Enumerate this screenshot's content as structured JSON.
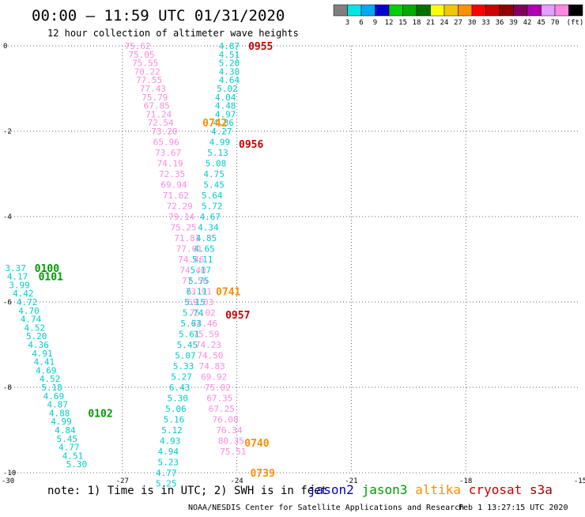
{
  "header": {
    "title": "00:00 — 11:59 UTC 01/31/2020",
    "subtitle": "12 hour collection of altimeter wave heights"
  },
  "colorbar": {
    "colors": [
      "#808080",
      "#00e5e5",
      "#00aaf0",
      "#0000d0",
      "#00d000",
      "#00aa00",
      "#007000",
      "#ffff00",
      "#f0c800",
      "#ff9000",
      "#ff0000",
      "#d00000",
      "#900000",
      "#800060",
      "#b000b0",
      "#e0a0ff",
      "#ff88e0",
      "#000000"
    ],
    "labels": [
      "3",
      "6",
      "9",
      "12",
      "15",
      "18",
      "21",
      "24",
      "27",
      "30",
      "33",
      "36",
      "39",
      "42",
      "45",
      "70",
      "(ft)"
    ]
  },
  "footer": {
    "note": "note: 1) Time is in UTC; 2) SWH is in feet",
    "credit": "NOAA/NESDIS Center for Satellite Applications and Research",
    "timestamp": "Feb  1 13:27:15 UTC 2020"
  },
  "legend": [
    {
      "name": "jason2",
      "color": "#0000cc"
    },
    {
      "name": "jason3",
      "color": "#009900"
    },
    {
      "name": "altika",
      "color": "#ff8c00"
    },
    {
      "name": "cryosat",
      "color": "#cc0000"
    },
    {
      "name": "s3a",
      "color": "#990000"
    }
  ],
  "chart_data": {
    "type": "scatter",
    "xlim": [
      -30,
      -15
    ],
    "ylim": [
      -10,
      0
    ],
    "xticks": [
      "-30",
      "-27",
      "-24",
      "-21",
      "-18",
      "-15"
    ],
    "yticks": [
      "0",
      "-2",
      "-4",
      "-6",
      "-8",
      "-10"
    ],
    "grid": true,
    "series": [
      {
        "name": "track-a",
        "color": "#ff88e0",
        "points": [
          [
            -26.6,
            0,
            "75.62"
          ],
          [
            -26.5,
            -0.2,
            "75.05"
          ],
          [
            -26.4,
            -0.4,
            "75.55"
          ],
          [
            -26.35,
            -0.6,
            "70.22"
          ],
          [
            -26.3,
            -0.8,
            "77.55"
          ],
          [
            -26.2,
            -1.0,
            "77.43"
          ],
          [
            -26.15,
            -1.2,
            "75.79"
          ],
          [
            -26.1,
            -1.4,
            "67.85"
          ],
          [
            -26.05,
            -1.6,
            "71.24"
          ],
          [
            -26.0,
            -1.8,
            "72.54"
          ],
          [
            -25.9,
            -2.0,
            "73.20"
          ],
          [
            -25.85,
            -2.25,
            "65.96"
          ],
          [
            -25.8,
            -2.5,
            "73.67"
          ],
          [
            -25.75,
            -2.75,
            "74.19"
          ],
          [
            -25.7,
            -3.0,
            "72.35"
          ],
          [
            -25.65,
            -3.25,
            "69.94"
          ],
          [
            -25.6,
            -3.5,
            "71.62"
          ],
          [
            -25.5,
            -3.75,
            "72.29"
          ],
          [
            -25.45,
            -4.0,
            "79.14"
          ],
          [
            -25.4,
            -4.25,
            "75.25"
          ],
          [
            -25.3,
            -4.5,
            "71.81"
          ],
          [
            -25.25,
            -4.75,
            "77.01"
          ],
          [
            -25.2,
            -5.0,
            "74.46"
          ],
          [
            -25.15,
            -5.25,
            "74.40"
          ],
          [
            -25.1,
            -5.5,
            "77.56"
          ],
          [
            -25.0,
            -5.75,
            "73.91"
          ],
          [
            -24.95,
            -6.0,
            "69.03"
          ],
          [
            -24.9,
            -6.25,
            "75.02"
          ],
          [
            -24.85,
            -6.5,
            "74.46"
          ],
          [
            -24.8,
            -6.75,
            "75.59"
          ],
          [
            -24.75,
            -7.0,
            "74.23"
          ],
          [
            -24.7,
            -7.25,
            "74.50"
          ],
          [
            -24.65,
            -7.5,
            "74.83"
          ],
          [
            -24.6,
            -7.75,
            "69.92"
          ],
          [
            -24.5,
            -8.0,
            "75.02"
          ],
          [
            -24.45,
            -8.25,
            "67.35"
          ],
          [
            -24.4,
            -8.5,
            "67.25"
          ],
          [
            -24.3,
            -8.75,
            "76.08"
          ],
          [
            -24.2,
            -9.0,
            "76.34"
          ],
          [
            -24.15,
            -9.25,
            "80.35"
          ],
          [
            -24.1,
            -9.5,
            "75.51"
          ]
        ]
      },
      {
        "name": "track-b",
        "color": "#00cccc",
        "points": [
          [
            -24.2,
            0,
            "4.87"
          ],
          [
            -24.2,
            -0.2,
            "4.51"
          ],
          [
            -24.2,
            -0.4,
            "5.20"
          ],
          [
            -24.2,
            -0.6,
            "4.30"
          ],
          [
            -24.2,
            -0.8,
            "4.64"
          ],
          [
            -24.25,
            -1.0,
            "5.02"
          ],
          [
            -24.3,
            -1.2,
            "4.04"
          ],
          [
            -24.3,
            -1.4,
            "4.48"
          ],
          [
            -24.3,
            -1.6,
            "4.97"
          ],
          [
            -24.35,
            -1.8,
            "4.86"
          ],
          [
            -24.4,
            -2.0,
            "4.27"
          ],
          [
            -24.45,
            -2.25,
            "4.99"
          ],
          [
            -24.5,
            -2.5,
            "5.13"
          ],
          [
            -24.55,
            -2.75,
            "5.08"
          ],
          [
            -24.6,
            -3.0,
            "4.75"
          ],
          [
            -24.6,
            -3.25,
            "5.45"
          ],
          [
            -24.65,
            -3.5,
            "5.64"
          ],
          [
            -24.65,
            -3.75,
            "5.72"
          ],
          [
            -24.7,
            -4.0,
            "4.67"
          ],
          [
            -24.75,
            -4.25,
            "4.34"
          ],
          [
            -24.8,
            -4.5,
            "4.85"
          ],
          [
            -24.85,
            -4.75,
            "4.65"
          ],
          [
            -24.9,
            -5.0,
            "5.11"
          ],
          [
            -24.95,
            -5.25,
            "5.17"
          ],
          [
            -25.0,
            -5.5,
            "5.75"
          ],
          [
            -25.05,
            -5.75,
            "6.11"
          ],
          [
            -25.1,
            -6.0,
            "5.15"
          ],
          [
            -25.15,
            -6.25,
            "5.74"
          ],
          [
            -25.2,
            -6.5,
            "5.63"
          ],
          [
            -25.25,
            -6.75,
            "5.61"
          ],
          [
            -25.3,
            -7.0,
            "5.45"
          ],
          [
            -25.35,
            -7.25,
            "5.07"
          ],
          [
            -25.4,
            -7.5,
            "5.33"
          ],
          [
            -25.45,
            -7.75,
            "5.27"
          ],
          [
            -25.5,
            -8.0,
            "6.43"
          ],
          [
            -25.55,
            -8.25,
            "5.30"
          ],
          [
            -25.6,
            -8.5,
            "5.06"
          ],
          [
            -25.65,
            -8.75,
            "5.16"
          ],
          [
            -25.7,
            -9.0,
            "5.12"
          ],
          [
            -25.75,
            -9.25,
            "4.93"
          ],
          [
            -25.8,
            -9.5,
            "4.94"
          ],
          [
            -25.8,
            -9.75,
            "5.23"
          ],
          [
            -25.85,
            -10.0,
            "4.77"
          ],
          [
            -25.85,
            -10.25,
            "5.25"
          ]
        ]
      },
      {
        "name": "track-c",
        "color": "#00cccc",
        "points": [
          [
            -29.8,
            -5.2,
            "3.37"
          ],
          [
            -29.75,
            -5.4,
            "4.17"
          ],
          [
            -29.7,
            -5.6,
            "3.99"
          ],
          [
            -29.6,
            -5.8,
            "4.42"
          ],
          [
            -29.5,
            -6.0,
            "4.72"
          ],
          [
            -29.45,
            -6.2,
            "4.70"
          ],
          [
            -29.4,
            -6.4,
            "4.74"
          ],
          [
            -29.3,
            -6.6,
            "4.52"
          ],
          [
            -29.25,
            -6.8,
            "5.20"
          ],
          [
            -29.2,
            -7.0,
            "4.36"
          ],
          [
            -29.1,
            -7.2,
            "4.91"
          ],
          [
            -29.05,
            -7.4,
            "4.41"
          ],
          [
            -29.0,
            -7.6,
            "4.69"
          ],
          [
            -28.9,
            -7.8,
            "4.52"
          ],
          [
            -28.85,
            -8.0,
            "5.18"
          ],
          [
            -28.8,
            -8.2,
            "4.69"
          ],
          [
            -28.7,
            -8.4,
            "4.87"
          ],
          [
            -28.65,
            -8.6,
            "4.88"
          ],
          [
            -28.6,
            -8.8,
            "4.99"
          ],
          [
            -28.5,
            -9.0,
            "4.84"
          ],
          [
            -28.45,
            -9.2,
            "5.45"
          ],
          [
            -28.4,
            -9.4,
            "4.77"
          ],
          [
            -28.3,
            -9.6,
            "4.51"
          ],
          [
            -28.2,
            -9.8,
            "5.30"
          ]
        ]
      }
    ],
    "time_labels": [
      {
        "text": "0955",
        "color": "#cc0000",
        "x": -23.7,
        "y": 0
      },
      {
        "text": "0742",
        "color": "#ff8c00",
        "x": -24.9,
        "y": -1.8
      },
      {
        "text": "0956",
        "color": "#cc0000",
        "x": -23.95,
        "y": -2.3
      },
      {
        "text": "0100",
        "color": "#009900",
        "x": -29.3,
        "y": -5.2
      },
      {
        "text": "0101",
        "color": "#009900",
        "x": -29.2,
        "y": -5.4
      },
      {
        "text": "0741",
        "color": "#ff8c00",
        "x": -24.55,
        "y": -5.75
      },
      {
        "text": "0957",
        "color": "#cc0000",
        "x": -24.3,
        "y": -6.3
      },
      {
        "text": "0102",
        "color": "#009900",
        "x": -27.9,
        "y": -8.6
      },
      {
        "text": "0740",
        "color": "#ff8c00",
        "x": -23.8,
        "y": -9.3
      },
      {
        "text": "0739",
        "color": "#ff8c00",
        "x": -23.65,
        "y": -10.0
      }
    ]
  }
}
